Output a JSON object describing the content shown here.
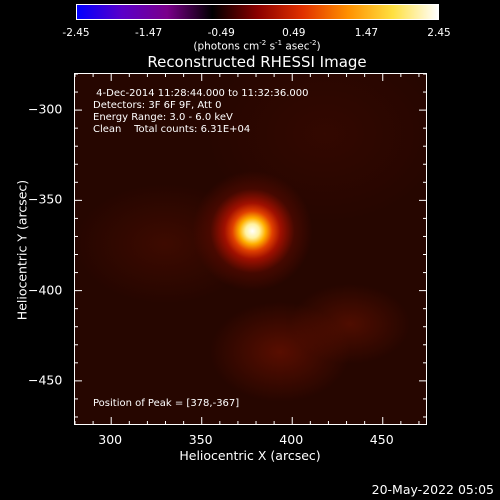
{
  "chart_data": {
    "type": "heatmap",
    "title": "Reconstructed RHESSI Image",
    "xlabel": "Heliocentric X (arcsec)",
    "ylabel": "Heliocentric Y (arcsec)",
    "xlim": [
      280,
      475
    ],
    "ylim": [
      -475,
      -280
    ],
    "x_ticks": [
      300,
      350,
      400,
      450
    ],
    "y_ticks": [
      -300,
      -350,
      -400,
      -450
    ],
    "colorbar": {
      "min": -2.45,
      "max": 2.45,
      "tick_labels": [
        "-2.45",
        "-1.47",
        "-0.49",
        "0.49",
        "1.47",
        "2.45"
      ],
      "unit_label_parts": [
        "(photons cm",
        "-2",
        " s",
        "-1",
        " asec",
        "-2",
        ")"
      ],
      "colors": [
        "#0000ff",
        "#5a00c8",
        "#7a008a",
        "#000000",
        "#8a0000",
        "#e03000",
        "#ff9000",
        "#ffe040",
        "#ffffff"
      ]
    },
    "info_lines": [
      " 4-Dec-2014 11:28:44.000 to 11:32:36.000",
      "Detectors: 3F 6F 9F, Att 0",
      "Energy Range: 3.0 - 6.0 keV",
      "Clean    Total counts: 6.31E+04"
    ],
    "peak_label": "Position of Peak = [378,-367]",
    "peak": {
      "x": 378,
      "y": -367
    },
    "grid": false
  },
  "footer": {
    "date": "20-May-2022 05:05"
  }
}
